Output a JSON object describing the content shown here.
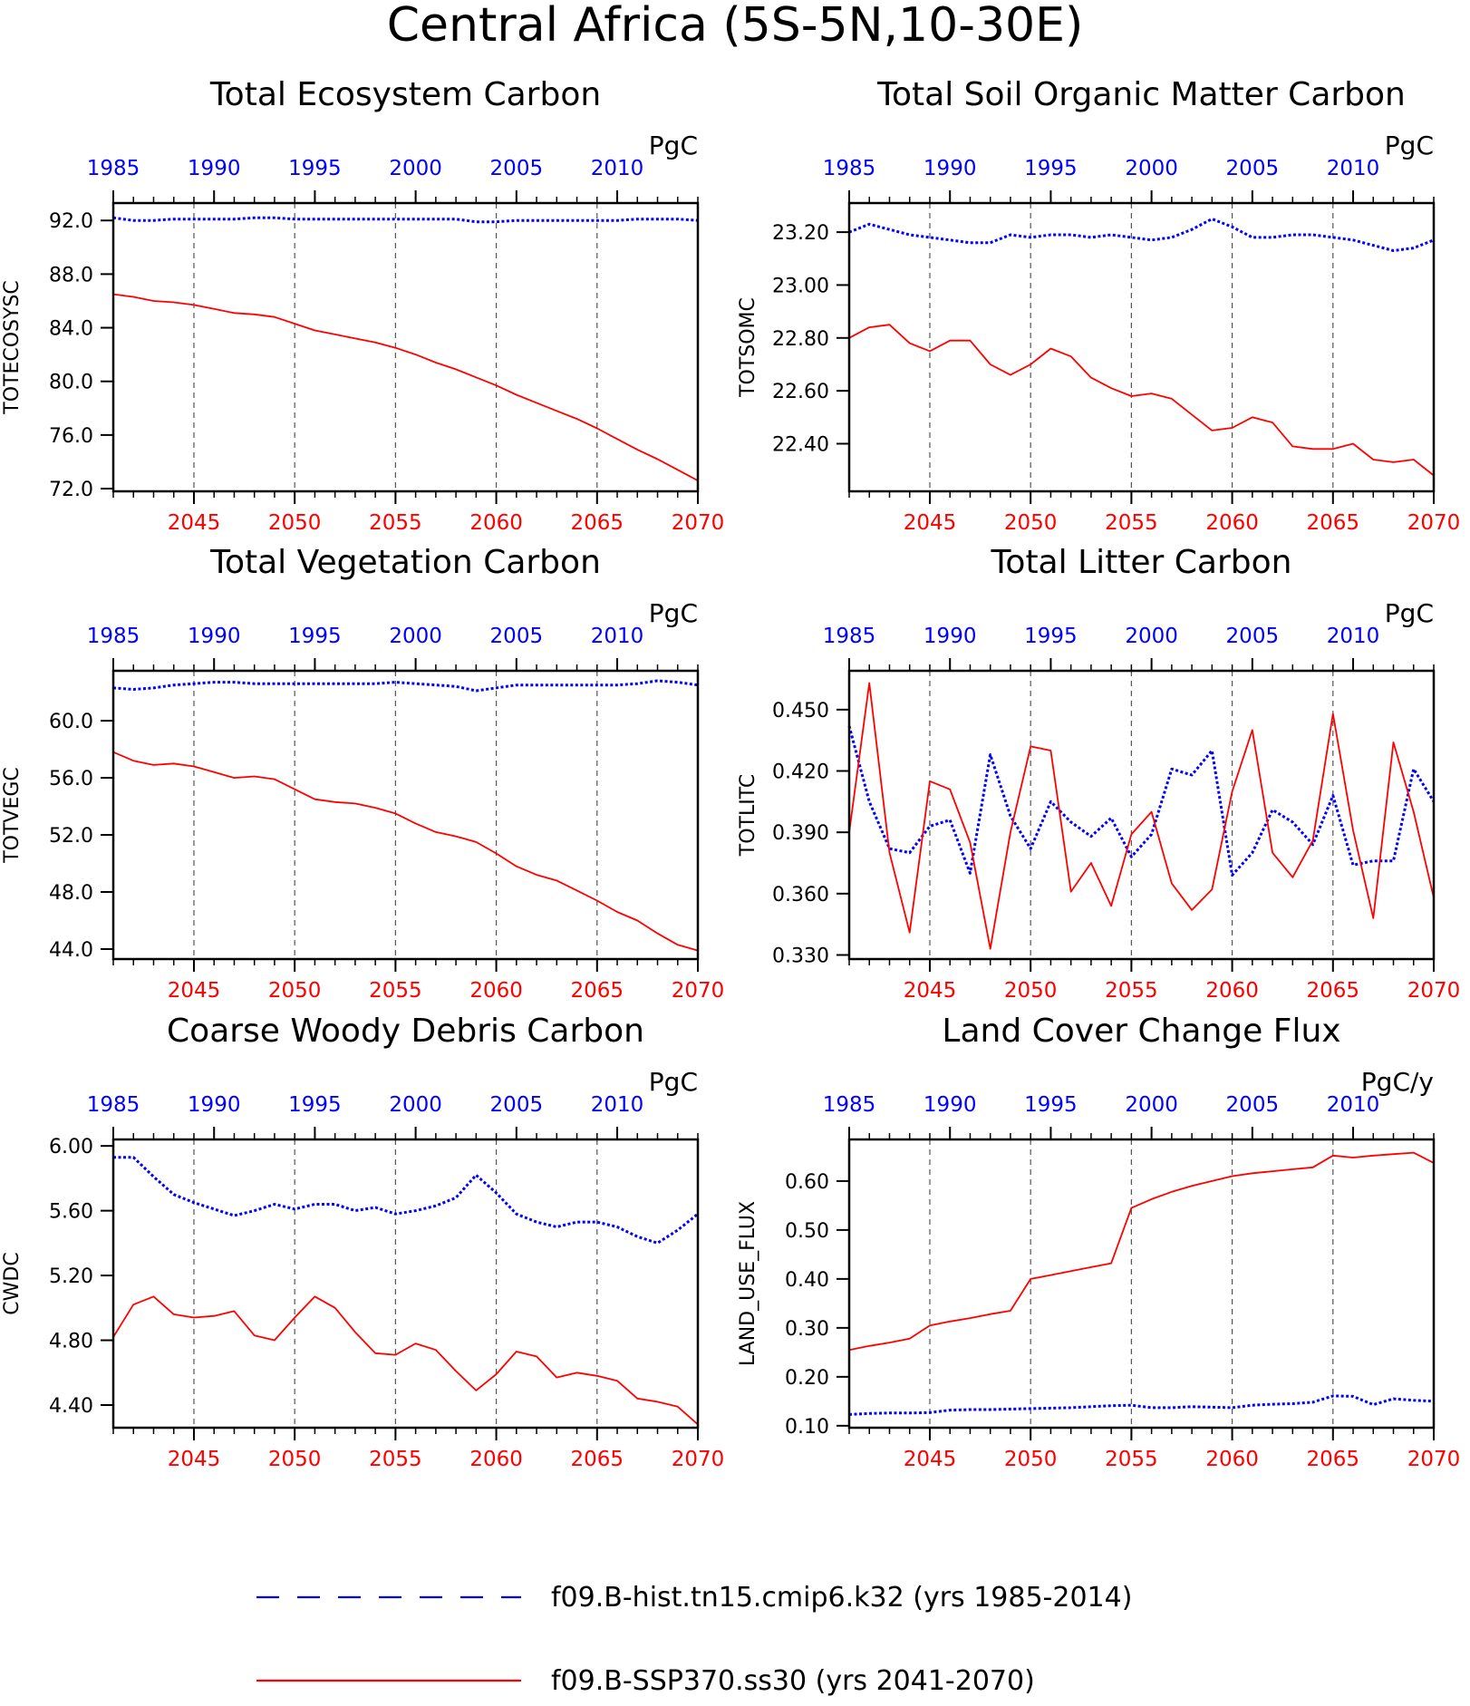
{
  "figure_title": "Central Africa (5S-5N,10-30E)",
  "colors": {
    "hist": "#0000ff",
    "ssp": "#ff0000",
    "frame": "#000000"
  },
  "legend": [
    {
      "label": "f09.B-hist.tn15.cmip6.k32 (yrs 1985-2014)",
      "color": "#0000ff",
      "style": "dashed"
    },
    {
      "label": "f09.B-SSP370.ss30 (yrs 2041-2070)",
      "color": "#ff0000",
      "style": "solid"
    }
  ],
  "top_axis": {
    "ticks": [
      1985,
      1990,
      1995,
      2000,
      2005,
      2010
    ],
    "labels": [
      "1985",
      "1990",
      "1995",
      "2000",
      "2005",
      "2010"
    ]
  },
  "bottom_axis": {
    "ticks": [
      2045,
      2050,
      2055,
      2060,
      2065,
      2070
    ],
    "labels": [
      "2045",
      "2050",
      "2055",
      "2060",
      "2065",
      "2070"
    ]
  },
  "chart_data": [
    {
      "type": "line",
      "title": "Total Ecosystem Carbon",
      "ylabel": "TOTECOSYSC",
      "units": "PgC",
      "ylim": [
        71.8,
        93.3
      ],
      "yticks": [
        72.0,
        76.0,
        80.0,
        84.0,
        88.0,
        92.0
      ],
      "ytick_labels": [
        "72.0",
        "76.0",
        "80.0",
        "84.0",
        "88.0",
        "92.0"
      ],
      "series": [
        {
          "key": "hist",
          "x": [
            1985,
            1986,
            1987,
            1988,
            1989,
            1990,
            1991,
            1992,
            1993,
            1994,
            1995,
            1996,
            1997,
            1998,
            1999,
            2000,
            2001,
            2002,
            2003,
            2004,
            2005,
            2006,
            2007,
            2008,
            2009,
            2010,
            2011,
            2012,
            2013,
            2014
          ],
          "values": [
            92.2,
            92.0,
            92.0,
            92.1,
            92.1,
            92.1,
            92.1,
            92.2,
            92.2,
            92.1,
            92.1,
            92.1,
            92.1,
            92.1,
            92.1,
            92.1,
            92.1,
            92.1,
            91.9,
            91.9,
            92.0,
            92.0,
            92.0,
            92.0,
            92.0,
            92.0,
            92.1,
            92.1,
            92.1,
            92.0
          ]
        },
        {
          "key": "ssp",
          "x": [
            2041,
            2042,
            2043,
            2044,
            2045,
            2046,
            2047,
            2048,
            2049,
            2050,
            2051,
            2052,
            2053,
            2054,
            2055,
            2056,
            2057,
            2058,
            2059,
            2060,
            2061,
            2062,
            2063,
            2064,
            2065,
            2066,
            2067,
            2068,
            2069,
            2070
          ],
          "values": [
            86.5,
            86.3,
            86.0,
            85.9,
            85.7,
            85.4,
            85.1,
            85.0,
            84.8,
            84.3,
            83.8,
            83.5,
            83.2,
            82.9,
            82.5,
            82.0,
            81.4,
            80.9,
            80.3,
            79.7,
            79.0,
            78.4,
            77.8,
            77.2,
            76.5,
            75.7,
            74.9,
            74.2,
            73.4,
            72.6
          ]
        }
      ]
    },
    {
      "type": "line",
      "title": "Total Soil Organic Matter Carbon",
      "ylabel": "TOTSOMC",
      "units": "PgC",
      "ylim": [
        22.22,
        23.31
      ],
      "yticks": [
        22.4,
        22.6,
        22.8,
        23.0,
        23.2
      ],
      "ytick_labels": [
        "22.40",
        "22.60",
        "22.80",
        "23.00",
        "23.20"
      ],
      "series": [
        {
          "key": "hist",
          "x": [
            1985,
            1986,
            1987,
            1988,
            1989,
            1990,
            1991,
            1992,
            1993,
            1994,
            1995,
            1996,
            1997,
            1998,
            1999,
            2000,
            2001,
            2002,
            2003,
            2004,
            2005,
            2006,
            2007,
            2008,
            2009,
            2010,
            2011,
            2012,
            2013,
            2014
          ],
          "values": [
            23.2,
            23.23,
            23.21,
            23.19,
            23.18,
            23.17,
            23.16,
            23.16,
            23.19,
            23.18,
            23.19,
            23.19,
            23.18,
            23.19,
            23.18,
            23.17,
            23.18,
            23.21,
            23.25,
            23.22,
            23.18,
            23.18,
            23.19,
            23.19,
            23.18,
            23.17,
            23.15,
            23.13,
            23.14,
            23.17
          ]
        },
        {
          "key": "ssp",
          "x": [
            2041,
            2042,
            2043,
            2044,
            2045,
            2046,
            2047,
            2048,
            2049,
            2050,
            2051,
            2052,
            2053,
            2054,
            2055,
            2056,
            2057,
            2058,
            2059,
            2060,
            2061,
            2062,
            2063,
            2064,
            2065,
            2066,
            2067,
            2068,
            2069,
            2070
          ],
          "values": [
            22.8,
            22.84,
            22.85,
            22.78,
            22.75,
            22.79,
            22.79,
            22.7,
            22.66,
            22.7,
            22.76,
            22.73,
            22.65,
            22.61,
            22.58,
            22.59,
            22.57,
            22.51,
            22.45,
            22.46,
            22.5,
            22.48,
            22.39,
            22.38,
            22.38,
            22.4,
            22.34,
            22.33,
            22.34,
            22.28
          ]
        }
      ]
    },
    {
      "type": "line",
      "title": "Total Vegetation Carbon",
      "ylabel": "TOTVEGC",
      "units": "PgC",
      "ylim": [
        43.3,
        63.5
      ],
      "yticks": [
        44.0,
        48.0,
        52.0,
        56.0,
        60.0
      ],
      "ytick_labels": [
        "44.0",
        "48.0",
        "52.0",
        "56.0",
        "60.0"
      ],
      "series": [
        {
          "key": "hist",
          "x": [
            1985,
            1986,
            1987,
            1988,
            1989,
            1990,
            1991,
            1992,
            1993,
            1994,
            1995,
            1996,
            1997,
            1998,
            1999,
            2000,
            2001,
            2002,
            2003,
            2004,
            2005,
            2006,
            2007,
            2008,
            2009,
            2010,
            2011,
            2012,
            2013,
            2014
          ],
          "values": [
            62.3,
            62.2,
            62.3,
            62.5,
            62.6,
            62.7,
            62.7,
            62.6,
            62.6,
            62.6,
            62.6,
            62.6,
            62.6,
            62.6,
            62.7,
            62.6,
            62.5,
            62.4,
            62.1,
            62.3,
            62.5,
            62.5,
            62.5,
            62.5,
            62.5,
            62.5,
            62.6,
            62.8,
            62.7,
            62.5
          ]
        },
        {
          "key": "ssp",
          "x": [
            2041,
            2042,
            2043,
            2044,
            2045,
            2046,
            2047,
            2048,
            2049,
            2050,
            2051,
            2052,
            2053,
            2054,
            2055,
            2056,
            2057,
            2058,
            2059,
            2060,
            2061,
            2062,
            2063,
            2064,
            2065,
            2066,
            2067,
            2068,
            2069,
            2070
          ],
          "values": [
            57.8,
            57.2,
            56.9,
            57.0,
            56.8,
            56.4,
            56.0,
            56.1,
            55.9,
            55.2,
            54.5,
            54.3,
            54.2,
            53.9,
            53.5,
            52.8,
            52.2,
            51.9,
            51.5,
            50.7,
            49.8,
            49.2,
            48.8,
            48.1,
            47.4,
            46.6,
            46.0,
            45.1,
            44.3,
            43.9
          ]
        }
      ]
    },
    {
      "type": "line",
      "title": "Total Litter Carbon",
      "ylabel": "TOTLITC",
      "units": "PgC",
      "ylim": [
        0.328,
        0.469
      ],
      "yticks": [
        0.33,
        0.36,
        0.39,
        0.42,
        0.45
      ],
      "ytick_labels": [
        "0.330",
        "0.360",
        "0.390",
        "0.420",
        "0.450"
      ],
      "series": [
        {
          "key": "hist",
          "x": [
            1985,
            1986,
            1987,
            1988,
            1989,
            1990,
            1991,
            1992,
            1993,
            1994,
            1995,
            1996,
            1997,
            1998,
            1999,
            2000,
            2001,
            2002,
            2003,
            2004,
            2005,
            2006,
            2007,
            2008,
            2009,
            2010,
            2011,
            2012,
            2013,
            2014
          ],
          "values": [
            0.442,
            0.405,
            0.382,
            0.38,
            0.393,
            0.396,
            0.37,
            0.428,
            0.398,
            0.382,
            0.405,
            0.395,
            0.388,
            0.397,
            0.378,
            0.389,
            0.421,
            0.418,
            0.43,
            0.369,
            0.38,
            0.401,
            0.395,
            0.384,
            0.408,
            0.374,
            0.376,
            0.376,
            0.421,
            0.405
          ]
        },
        {
          "key": "ssp",
          "x": [
            2041,
            2042,
            2043,
            2044,
            2045,
            2046,
            2047,
            2048,
            2049,
            2050,
            2051,
            2052,
            2053,
            2054,
            2055,
            2056,
            2057,
            2058,
            2059,
            2060,
            2061,
            2062,
            2063,
            2064,
            2065,
            2066,
            2067,
            2068,
            2069,
            2070
          ],
          "values": [
            0.39,
            0.463,
            0.38,
            0.341,
            0.415,
            0.411,
            0.385,
            0.333,
            0.39,
            0.432,
            0.43,
            0.361,
            0.375,
            0.354,
            0.389,
            0.4,
            0.365,
            0.352,
            0.362,
            0.41,
            0.44,
            0.38,
            0.368,
            0.386,
            0.448,
            0.391,
            0.348,
            0.434,
            0.4,
            0.358
          ]
        }
      ]
    },
    {
      "type": "line",
      "title": "Coarse Woody Debris Carbon",
      "ylabel": "CWDC",
      "units": "PgC",
      "ylim": [
        4.26,
        6.04
      ],
      "yticks": [
        4.4,
        4.8,
        5.2,
        5.6,
        6.0
      ],
      "ytick_labels": [
        "4.40",
        "4.80",
        "5.20",
        "5.60",
        "6.00"
      ],
      "series": [
        {
          "key": "hist",
          "x": [
            1985,
            1986,
            1987,
            1988,
            1989,
            1990,
            1991,
            1992,
            1993,
            1994,
            1995,
            1996,
            1997,
            1998,
            1999,
            2000,
            2001,
            2002,
            2003,
            2004,
            2005,
            2006,
            2007,
            2008,
            2009,
            2010,
            2011,
            2012,
            2013,
            2014
          ],
          "values": [
            5.93,
            5.93,
            5.81,
            5.7,
            5.65,
            5.61,
            5.57,
            5.6,
            5.64,
            5.61,
            5.64,
            5.64,
            5.6,
            5.62,
            5.58,
            5.6,
            5.63,
            5.68,
            5.82,
            5.71,
            5.58,
            5.53,
            5.5,
            5.53,
            5.53,
            5.5,
            5.44,
            5.4,
            5.48,
            5.58
          ]
        },
        {
          "key": "ssp",
          "x": [
            2041,
            2042,
            2043,
            2044,
            2045,
            2046,
            2047,
            2048,
            2049,
            2050,
            2051,
            2052,
            2053,
            2054,
            2055,
            2056,
            2057,
            2058,
            2059,
            2060,
            2061,
            2062,
            2063,
            2064,
            2065,
            2066,
            2067,
            2068,
            2069,
            2070
          ],
          "values": [
            4.82,
            5.02,
            5.07,
            4.96,
            4.94,
            4.95,
            4.98,
            4.83,
            4.8,
            4.94,
            5.07,
            5.0,
            4.85,
            4.72,
            4.71,
            4.78,
            4.74,
            4.61,
            4.49,
            4.59,
            4.73,
            4.7,
            4.57,
            4.6,
            4.58,
            4.55,
            4.44,
            4.42,
            4.39,
            4.28
          ]
        }
      ]
    },
    {
      "type": "line",
      "title": "Land Cover Change Flux",
      "ylabel": "LAND_USE_FLUX",
      "units": "PgC/y",
      "ylim": [
        0.096,
        0.685
      ],
      "yticks": [
        0.1,
        0.2,
        0.3,
        0.4,
        0.5,
        0.6
      ],
      "ytick_labels": [
        "0.10",
        "0.20",
        "0.30",
        "0.40",
        "0.50",
        "0.60"
      ],
      "series": [
        {
          "key": "hist",
          "x": [
            1985,
            1986,
            1987,
            1988,
            1989,
            1990,
            1991,
            1992,
            1993,
            1994,
            1995,
            1996,
            1997,
            1998,
            1999,
            2000,
            2001,
            2002,
            2003,
            2004,
            2005,
            2006,
            2007,
            2008,
            2009,
            2010,
            2011,
            2012,
            2013,
            2014
          ],
          "values": [
            0.123,
            0.125,
            0.126,
            0.126,
            0.127,
            0.132,
            0.133,
            0.133,
            0.134,
            0.135,
            0.136,
            0.137,
            0.139,
            0.141,
            0.142,
            0.137,
            0.137,
            0.139,
            0.138,
            0.137,
            0.142,
            0.144,
            0.145,
            0.148,
            0.161,
            0.16,
            0.143,
            0.155,
            0.152,
            0.15
          ]
        },
        {
          "key": "ssp",
          "x": [
            2041,
            2042,
            2043,
            2044,
            2045,
            2046,
            2047,
            2048,
            2049,
            2050,
            2051,
            2052,
            2053,
            2054,
            2055,
            2056,
            2057,
            2058,
            2059,
            2060,
            2061,
            2062,
            2063,
            2064,
            2065,
            2066,
            2067,
            2068,
            2069,
            2070
          ],
          "values": [
            0.255,
            0.263,
            0.27,
            0.278,
            0.305,
            0.313,
            0.32,
            0.328,
            0.335,
            0.4,
            0.408,
            0.416,
            0.424,
            0.432,
            0.545,
            0.563,
            0.578,
            0.59,
            0.6,
            0.61,
            0.616,
            0.62,
            0.624,
            0.628,
            0.652,
            0.648,
            0.652,
            0.655,
            0.658,
            0.637
          ]
        }
      ]
    }
  ]
}
